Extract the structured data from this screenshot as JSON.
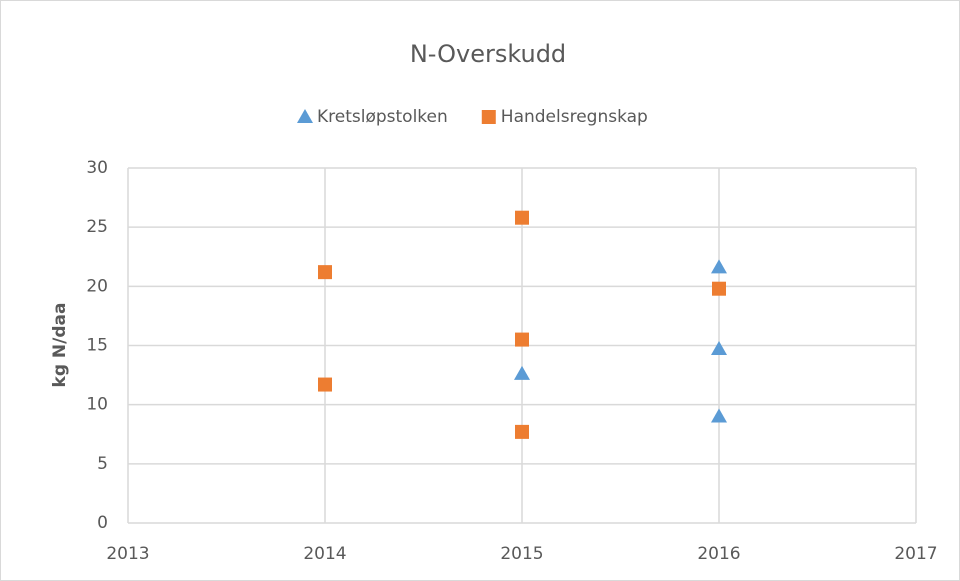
{
  "chart_data": {
    "type": "scatter",
    "title": "N-Overskudd",
    "ylabel": "kg N/daa",
    "series": [
      {
        "name": "Kretsløpstolken",
        "color": "#5b9bd5",
        "marker": "triangle",
        "x": [
          2015,
          2016,
          2016,
          2016
        ],
        "values": [
          12.6,
          21.6,
          14.7,
          9.0
        ]
      },
      {
        "name": "Handelsregnskap",
        "color": "#ed7d31",
        "marker": "square",
        "x": [
          2014,
          2014,
          2015,
          2015,
          2015,
          2016
        ],
        "values": [
          21.2,
          11.7,
          25.8,
          15.5,
          7.7,
          19.8
        ]
      }
    ],
    "xlim": [
      2013,
      2017
    ],
    "xticks": [
      2013,
      2014,
      2015,
      2016,
      2017
    ],
    "ylim": [
      0,
      30
    ],
    "yticks": [
      0,
      5,
      10,
      15,
      20,
      25,
      30
    ],
    "grid": true,
    "legend": "top"
  }
}
